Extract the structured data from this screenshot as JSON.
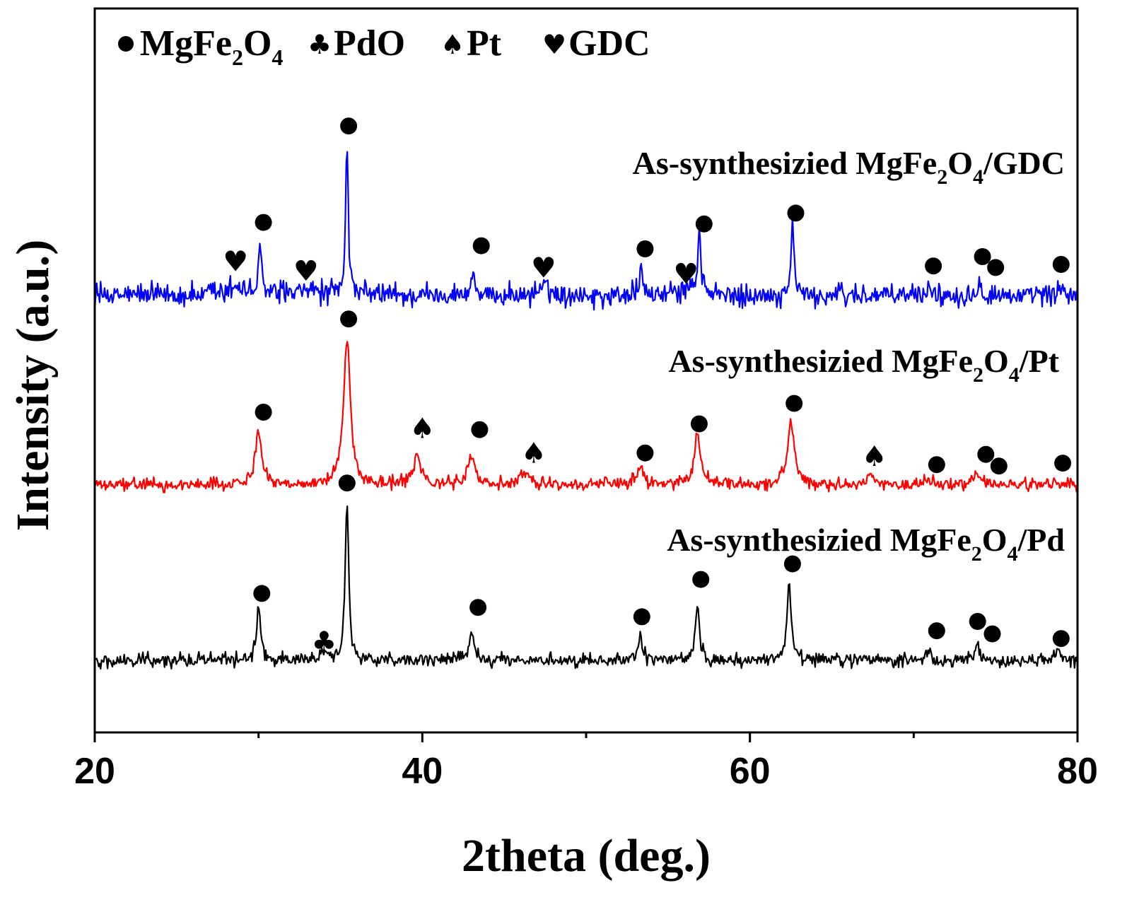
{
  "chart_data": {
    "type": "line",
    "xlabel": "2theta (deg.)",
    "ylabel": "Intensity (a.u.)",
    "xlim": [
      20,
      80
    ],
    "xticks": [
      20,
      40,
      60,
      80
    ],
    "xticks_minor": [
      30,
      50,
      70
    ],
    "yticks": false,
    "grid": false,
    "legend_position": "top-left",
    "legend": [
      {
        "symbol": "circle",
        "glyph": "●",
        "label_main": "MgFe",
        "sub1": "2",
        "mid": "O",
        "sub2": "4",
        "phase": "MgFe2O4"
      },
      {
        "symbol": "club",
        "glyph": "♣",
        "label_main": "PdO",
        "sub1": "",
        "mid": "",
        "sub2": "",
        "phase": "PdO"
      },
      {
        "symbol": "spade",
        "glyph": "♠",
        "label_main": "Pt",
        "sub1": "",
        "mid": "",
        "sub2": "",
        "phase": "Pt"
      },
      {
        "symbol": "heart",
        "glyph": "♥",
        "label_main": "GDC",
        "sub1": "",
        "mid": "",
        "sub2": "",
        "phase": "GDC"
      }
    ],
    "series": [
      {
        "id": "gdc",
        "label_pre": "As-synthesizied MgFe",
        "label_sub1": "2",
        "label_mid": "O",
        "label_sub2": "4",
        "label_post": "/GDC",
        "color": "#0000ff",
        "baseline": 0,
        "noise": 0.06,
        "peaks": [
          {
            "x": 28.6,
            "h": 0.07,
            "w": 0.4
          },
          {
            "x": 30.1,
            "h": 0.3,
            "w": 0.12
          },
          {
            "x": 33.2,
            "h": 0.05,
            "w": 0.4
          },
          {
            "x": 35.4,
            "h": 1.0,
            "w": 0.1
          },
          {
            "x": 43.1,
            "h": 0.16,
            "w": 0.12
          },
          {
            "x": 47.5,
            "h": 0.06,
            "w": 0.4
          },
          {
            "x": 53.4,
            "h": 0.15,
            "w": 0.12
          },
          {
            "x": 56.2,
            "h": 0.05,
            "w": 0.4
          },
          {
            "x": 56.9,
            "h": 0.4,
            "w": 0.12
          },
          {
            "x": 62.6,
            "h": 0.43,
            "w": 0.12
          },
          {
            "x": 71.0,
            "h": 0.05,
            "w": 0.15
          },
          {
            "x": 74.0,
            "h": 0.09,
            "w": 0.15
          },
          {
            "x": 79.0,
            "h": 0.05,
            "w": 0.15
          }
        ],
        "markers": [
          {
            "x": 28.6,
            "symbol": "heart",
            "h": 0.22
          },
          {
            "x": 30.3,
            "symbol": "circle",
            "h": 0.47
          },
          {
            "x": 32.9,
            "symbol": "heart",
            "h": 0.16
          },
          {
            "x": 35.5,
            "symbol": "circle",
            "h": 1.09
          },
          {
            "x": 43.6,
            "symbol": "circle",
            "h": 0.32
          },
          {
            "x": 47.4,
            "symbol": "heart",
            "h": 0.18
          },
          {
            "x": 53.6,
            "symbol": "circle",
            "h": 0.3
          },
          {
            "x": 56.1,
            "symbol": "heart",
            "h": 0.14
          },
          {
            "x": 57.2,
            "symbol": "circle",
            "h": 0.46
          },
          {
            "x": 62.8,
            "symbol": "circle",
            "h": 0.53
          },
          {
            "x": 71.2,
            "symbol": "circle",
            "h": 0.19
          },
          {
            "x": 74.2,
            "symbol": "circle",
            "h": 0.25
          },
          {
            "x": 75.0,
            "symbol": "circle",
            "h": 0.18
          },
          {
            "x": 79.0,
            "symbol": "circle",
            "h": 0.2
          }
        ]
      },
      {
        "id": "pt",
        "label_pre": "As-synthesizied MgFe",
        "label_sub1": "2",
        "label_mid": "O",
        "label_sub2": "4",
        "label_post": "/Pt",
        "color": "#ff0000",
        "baseline": 0,
        "noise": 0.035,
        "peaks": [
          {
            "x": 30.0,
            "h": 0.37,
            "w": 0.25
          },
          {
            "x": 35.4,
            "h": 1.0,
            "w": 0.25
          },
          {
            "x": 39.7,
            "h": 0.2,
            "w": 0.28
          },
          {
            "x": 43.0,
            "h": 0.2,
            "w": 0.25
          },
          {
            "x": 46.3,
            "h": 0.09,
            "w": 0.35
          },
          {
            "x": 53.3,
            "h": 0.12,
            "w": 0.25
          },
          {
            "x": 56.8,
            "h": 0.33,
            "w": 0.25
          },
          {
            "x": 62.5,
            "h": 0.43,
            "w": 0.25
          },
          {
            "x": 67.4,
            "h": 0.06,
            "w": 0.3
          },
          {
            "x": 71.0,
            "h": 0.04,
            "w": 0.3
          },
          {
            "x": 73.9,
            "h": 0.06,
            "w": 0.3
          }
        ],
        "markers": [
          {
            "x": 30.3,
            "symbol": "circle",
            "h": 0.5
          },
          {
            "x": 35.5,
            "symbol": "circle",
            "h": 1.14
          },
          {
            "x": 40.0,
            "symbol": "spade",
            "h": 0.39
          },
          {
            "x": 43.5,
            "symbol": "circle",
            "h": 0.38
          },
          {
            "x": 46.8,
            "symbol": "spade",
            "h": 0.22
          },
          {
            "x": 53.6,
            "symbol": "circle",
            "h": 0.22
          },
          {
            "x": 56.9,
            "symbol": "circle",
            "h": 0.42
          },
          {
            "x": 62.7,
            "symbol": "circle",
            "h": 0.56
          },
          {
            "x": 67.6,
            "symbol": "spade",
            "h": 0.2
          },
          {
            "x": 71.4,
            "symbol": "circle",
            "h": 0.14
          },
          {
            "x": 74.4,
            "symbol": "circle",
            "h": 0.21
          },
          {
            "x": 75.2,
            "symbol": "circle",
            "h": 0.13
          },
          {
            "x": 79.1,
            "symbol": "circle",
            "h": 0.15
          }
        ]
      },
      {
        "id": "pd",
        "label_pre": "As-synthesizied MgFe",
        "label_sub1": "2",
        "label_mid": "O",
        "label_sub2": "4",
        "label_post": "/Pd",
        "color": "#000000",
        "baseline": 0,
        "noise": 0.035,
        "peaks": [
          {
            "x": 30.0,
            "h": 0.35,
            "w": 0.15
          },
          {
            "x": 34.0,
            "h": 0.04,
            "w": 0.3
          },
          {
            "x": 35.4,
            "h": 1.0,
            "w": 0.13
          },
          {
            "x": 43.0,
            "h": 0.2,
            "w": 0.15
          },
          {
            "x": 53.3,
            "h": 0.17,
            "w": 0.15
          },
          {
            "x": 56.8,
            "h": 0.35,
            "w": 0.15
          },
          {
            "x": 62.4,
            "h": 0.51,
            "w": 0.15
          },
          {
            "x": 70.9,
            "h": 0.06,
            "w": 0.15
          },
          {
            "x": 73.9,
            "h": 0.1,
            "w": 0.15
          },
          {
            "x": 78.8,
            "h": 0.06,
            "w": 0.15
          }
        ],
        "markers": [
          {
            "x": 30.2,
            "symbol": "circle",
            "h": 0.43
          },
          {
            "x": 34.0,
            "symbol": "club",
            "h": 0.12
          },
          {
            "x": 35.4,
            "symbol": "circle",
            "h": 1.14
          },
          {
            "x": 43.4,
            "symbol": "circle",
            "h": 0.34
          },
          {
            "x": 53.4,
            "symbol": "circle",
            "h": 0.28
          },
          {
            "x": 57.0,
            "symbol": "circle",
            "h": 0.52
          },
          {
            "x": 62.6,
            "symbol": "circle",
            "h": 0.62
          },
          {
            "x": 71.4,
            "symbol": "circle",
            "h": 0.19
          },
          {
            "x": 73.9,
            "symbol": "circle",
            "h": 0.25
          },
          {
            "x": 74.8,
            "symbol": "circle",
            "h": 0.17
          },
          {
            "x": 79.0,
            "symbol": "circle",
            "h": 0.14
          }
        ]
      }
    ]
  }
}
